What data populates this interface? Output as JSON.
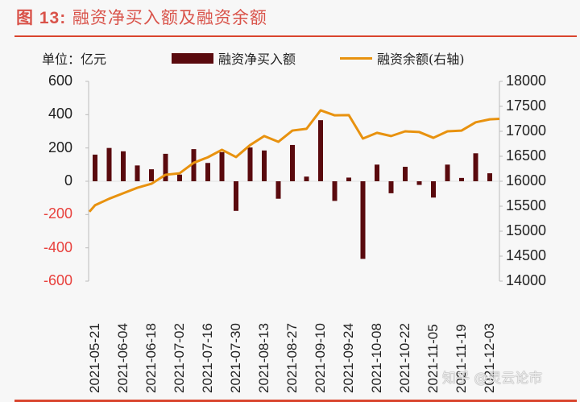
{
  "header": {
    "figure_no": "图 13:",
    "title": "融资净买入额及融资余额"
  },
  "unit_label": "单位：亿元",
  "legend": {
    "bar_label": "融资净买入额",
    "line_label": "融资余额(右轴)"
  },
  "colors": {
    "bar": "#5a0a0e",
    "line": "#e8920f",
    "accent_red": "#d9452e",
    "negative_tick": "#e8413d"
  },
  "left_axis": {
    "ticks": [
      "600",
      "400",
      "200",
      "0",
      "-200",
      "-400",
      "-600"
    ]
  },
  "right_axis": {
    "ticks": [
      "18000",
      "17500",
      "17000",
      "16500",
      "16000",
      "15500",
      "15000",
      "14500",
      "14000"
    ]
  },
  "x_tick_labels": [
    "2021-05-21",
    "2021-06-04",
    "2021-06-18",
    "2021-07-02",
    "2021-07-16",
    "2021-07-30",
    "2021-08-13",
    "2021-08-27",
    "2021-09-10",
    "2021-09-24",
    "2021-10-08",
    "2021-10-22",
    "2021-11-05",
    "2021-11-19",
    "2021-12-03"
  ],
  "watermark": "知乎 @灵云论市",
  "chart_data": {
    "type": "bar+line",
    "title": "图 13：融资净买入额及融资余额",
    "unit": "亿元",
    "categories": [
      "2021-05-21",
      "2021-05-28",
      "2021-06-04",
      "2021-06-11",
      "2021-06-18",
      "2021-06-25",
      "2021-07-02",
      "2021-07-09",
      "2021-07-16",
      "2021-07-23",
      "2021-07-30",
      "2021-08-06",
      "2021-08-13",
      "2021-08-20",
      "2021-08-27",
      "2021-09-03",
      "2021-09-10",
      "2021-09-17",
      "2021-09-24",
      "2021-10-01",
      "2021-10-08",
      "2021-10-15",
      "2021-10-22",
      "2021-10-29",
      "2021-11-05",
      "2021-11-12",
      "2021-11-19",
      "2021-11-26",
      "2021-12-03"
    ],
    "series": [
      {
        "name": "融资净买入额",
        "type": "bar",
        "axis": "left",
        "values": [
          160,
          200,
          180,
          95,
          72,
          165,
          40,
          193,
          110,
          175,
          -178,
          203,
          185,
          -105,
          218,
          28,
          367,
          -118,
          22,
          -466,
          100,
          -72,
          87,
          -22,
          -98,
          100,
          20,
          168,
          48
        ]
      },
      {
        "name": "融资余额(右轴)",
        "type": "line",
        "axis": "right",
        "values": [
          15520,
          15650,
          15760,
          15870,
          15950,
          16130,
          16160,
          16370,
          16480,
          16630,
          16485,
          16725,
          16905,
          16790,
          17015,
          17050,
          17420,
          17320,
          17325,
          16855,
          16970,
          16905,
          17000,
          16985,
          16870,
          17000,
          17015,
          17180,
          17240
        ],
        "start_value": 15390
      }
    ],
    "ylim_left": [
      -600,
      600
    ],
    "ylim_right": [
      14000,
      18000
    ],
    "grid": false,
    "legend_position": "top"
  }
}
